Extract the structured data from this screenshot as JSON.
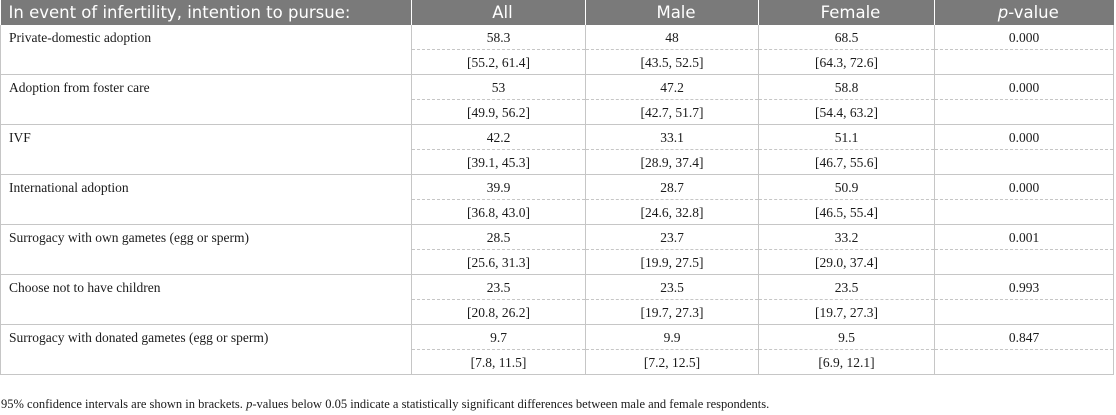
{
  "table": {
    "headers": {
      "label": "In event of infertility, intention to pursue:",
      "all": "All",
      "male": "Male",
      "female": "Female",
      "pvalue_italic": "p",
      "pvalue_rest": "-value"
    },
    "rows": [
      {
        "label": "Private-domestic adoption",
        "all": "58.3",
        "male": "48",
        "female": "68.5",
        "p": "0.000",
        "all_ci": "[55.2, 61.4]",
        "male_ci": "[43.5, 52.5]",
        "female_ci": "[64.3, 72.6]"
      },
      {
        "label": "Adoption from foster care",
        "all": "53",
        "male": "47.2",
        "female": "58.8",
        "p": "0.000",
        "all_ci": "[49.9, 56.2]",
        "male_ci": "[42.7, 51.7]",
        "female_ci": "[54.4, 63.2]"
      },
      {
        "label": "IVF",
        "all": "42.2",
        "male": "33.1",
        "female": "51.1",
        "p": "0.000",
        "all_ci": "[39.1, 45.3]",
        "male_ci": "[28.9, 37.4]",
        "female_ci": "[46.7, 55.6]"
      },
      {
        "label": "International adoption",
        "all": "39.9",
        "male": "28.7",
        "female": "50.9",
        "p": "0.000",
        "all_ci": "[36.8, 43.0]",
        "male_ci": "[24.6, 32.8]",
        "female_ci": "[46.5, 55.4]"
      },
      {
        "label": "Surrogacy with own gametes (egg or sperm)",
        "all": "28.5",
        "male": "23.7",
        "female": "33.2",
        "p": "0.001",
        "all_ci": "[25.6, 31.3]",
        "male_ci": "[19.9, 27.5]",
        "female_ci": "[29.0, 37.4]"
      },
      {
        "label": "Choose not to have children",
        "all": "23.5",
        "male": "23.5",
        "female": "23.5",
        "p": "0.993",
        "all_ci": "[20.8, 26.2]",
        "male_ci": "[19.7, 27.3]",
        "female_ci": "[19.7, 27.3]"
      },
      {
        "label": "Surrogacy with donated gametes (egg or sperm)",
        "all": "9.7",
        "male": "9.9",
        "female": "9.5",
        "p": "0.847",
        "all_ci": "[7.8, 11.5]",
        "male_ci": "[7.2, 12.5]",
        "female_ci": "[6.9, 12.1]"
      }
    ]
  },
  "footnote": {
    "part1": "95% confidence intervals are shown in brackets. ",
    "italic": "p",
    "part2": "-values below 0.05 indicate a statistically significant differences between male and female respondents."
  },
  "colors": {
    "header_bg": "#7a7a7a",
    "header_text": "#ffffff",
    "grid": "#c6c6c6"
  }
}
